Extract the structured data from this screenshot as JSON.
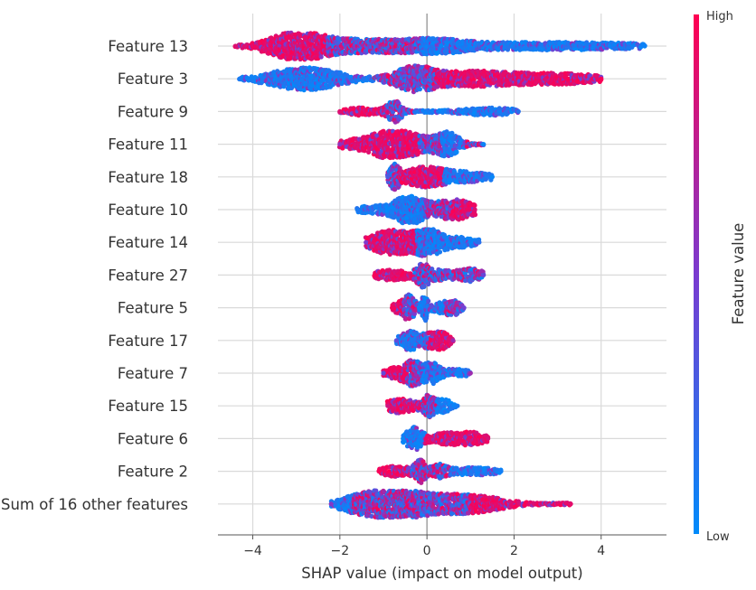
{
  "chart_data": {
    "type": "beeswarm",
    "title": "",
    "xlabel": "SHAP value (impact on model output)",
    "xlim": [
      -4.8,
      5.5
    ],
    "x_ticks": [
      -4,
      -2,
      0,
      2,
      4
    ],
    "grid": true,
    "colorbar": {
      "label": "Feature value",
      "high_label": "High",
      "low_label": "Low",
      "low_color": "#008bfb",
      "high_color": "#ff0051"
    },
    "features": [
      {
        "name": "Feature 13",
        "min": -4.4,
        "max": 5.0,
        "clusters": [
          [
            -3.0,
            0.55,
            0.85,
            "high"
          ],
          [
            -1.5,
            1.2,
            0.45,
            "mixed"
          ],
          [
            0.3,
            0.6,
            0.3,
            "low"
          ],
          [
            3.0,
            2.0,
            0.25,
            "low"
          ]
        ]
      },
      {
        "name": "Feature 3",
        "min": -4.3,
        "max": 4.0,
        "clusters": [
          [
            -2.8,
            0.7,
            0.8,
            "low"
          ],
          [
            -0.3,
            0.4,
            0.8,
            "mixed"
          ],
          [
            1.0,
            0.8,
            0.5,
            "high"
          ],
          [
            3.0,
            1.0,
            0.35,
            "high"
          ]
        ]
      },
      {
        "name": "Feature 9",
        "min": -2.0,
        "max": 2.1,
        "clusters": [
          [
            -1.5,
            0.35,
            0.25,
            "high"
          ],
          [
            -0.75,
            0.15,
            0.75,
            "mixed"
          ],
          [
            1.4,
            0.6,
            0.25,
            "low"
          ]
        ]
      },
      {
        "name": "Feature 11",
        "min": -2.0,
        "max": 1.3,
        "clusters": [
          [
            -1.2,
            0.7,
            0.45,
            "high"
          ],
          [
            -0.7,
            0.35,
            0.85,
            "high"
          ],
          [
            0.2,
            0.4,
            0.4,
            "mixed"
          ],
          [
            0.5,
            0.2,
            0.55,
            "low"
          ]
        ]
      },
      {
        "name": "Feature 18",
        "min": -0.9,
        "max": 1.5,
        "clusters": [
          [
            -0.75,
            0.1,
            0.75,
            "mixed"
          ],
          [
            -0.1,
            0.4,
            0.6,
            "high"
          ],
          [
            0.8,
            0.6,
            0.35,
            "low"
          ]
        ]
      },
      {
        "name": "Feature 10",
        "min": -1.6,
        "max": 1.1,
        "clusters": [
          [
            -1.0,
            0.5,
            0.3,
            "low"
          ],
          [
            -0.4,
            0.25,
            0.85,
            "low"
          ],
          [
            0.3,
            0.4,
            0.45,
            "mixed"
          ],
          [
            0.8,
            0.3,
            0.45,
            "high"
          ]
        ]
      },
      {
        "name": "Feature 14",
        "min": -1.4,
        "max": 1.2,
        "clusters": [
          [
            -1.1,
            0.3,
            0.45,
            "high"
          ],
          [
            -0.6,
            0.35,
            0.7,
            "high"
          ],
          [
            0.05,
            0.25,
            0.8,
            "low"
          ],
          [
            0.7,
            0.4,
            0.35,
            "low"
          ]
        ]
      },
      {
        "name": "Feature 27",
        "min": -1.2,
        "max": 1.3,
        "clusters": [
          [
            -0.8,
            0.4,
            0.35,
            "high"
          ],
          [
            -0.1,
            0.12,
            0.7,
            "mixed"
          ],
          [
            0.3,
            0.25,
            0.35,
            "mixed"
          ],
          [
            1.0,
            0.25,
            0.45,
            "mixed"
          ]
        ]
      },
      {
        "name": "Feature 5",
        "min": -0.8,
        "max": 0.85,
        "clusters": [
          [
            -0.6,
            0.2,
            0.35,
            "high"
          ],
          [
            -0.4,
            0.12,
            0.7,
            "mixed"
          ],
          [
            -0.05,
            0.06,
            0.9,
            "low"
          ],
          [
            0.3,
            0.2,
            0.3,
            "low"
          ],
          [
            0.6,
            0.15,
            0.45,
            "mixed"
          ]
        ]
      },
      {
        "name": "Feature 17",
        "min": -0.7,
        "max": 0.6,
        "clusters": [
          [
            -0.4,
            0.2,
            0.7,
            "low"
          ],
          [
            0.0,
            0.1,
            0.3,
            "mixed"
          ],
          [
            0.3,
            0.18,
            0.65,
            "high"
          ]
        ]
      },
      {
        "name": "Feature 7",
        "min": -1.0,
        "max": 1.0,
        "clusters": [
          [
            -0.6,
            0.3,
            0.45,
            "high"
          ],
          [
            -0.3,
            0.15,
            0.65,
            "mixed"
          ],
          [
            0.1,
            0.15,
            0.65,
            "low"
          ],
          [
            0.6,
            0.3,
            0.3,
            "low"
          ]
        ]
      },
      {
        "name": "Feature 15",
        "min": -0.9,
        "max": 0.7,
        "clusters": [
          [
            -0.6,
            0.3,
            0.5,
            "high"
          ],
          [
            0.05,
            0.12,
            0.75,
            "mixed"
          ],
          [
            0.4,
            0.15,
            0.45,
            "low"
          ]
        ]
      },
      {
        "name": "Feature 6",
        "min": -0.55,
        "max": 1.4,
        "clusters": [
          [
            -0.3,
            0.15,
            0.8,
            "low"
          ],
          [
            0.5,
            0.4,
            0.4,
            "high"
          ],
          [
            1.1,
            0.25,
            0.3,
            "high"
          ]
        ]
      },
      {
        "name": "Feature 2",
        "min": -1.1,
        "max": 1.7,
        "clusters": [
          [
            -0.7,
            0.3,
            0.35,
            "high"
          ],
          [
            -0.15,
            0.12,
            0.75,
            "mixed"
          ],
          [
            0.3,
            0.15,
            0.45,
            "mixed"
          ],
          [
            1.1,
            0.5,
            0.25,
            "low"
          ]
        ]
      },
      {
        "name": "Sum of 16 other features",
        "min": -2.2,
        "max": 3.3,
        "clusters": [
          [
            -0.9,
            0.5,
            0.95,
            "mixed"
          ],
          [
            0.0,
            0.9,
            0.6,
            "mixed"
          ],
          [
            1.2,
            0.6,
            0.35,
            "high"
          ],
          [
            -1.8,
            0.3,
            0.3,
            "low"
          ]
        ]
      }
    ]
  }
}
